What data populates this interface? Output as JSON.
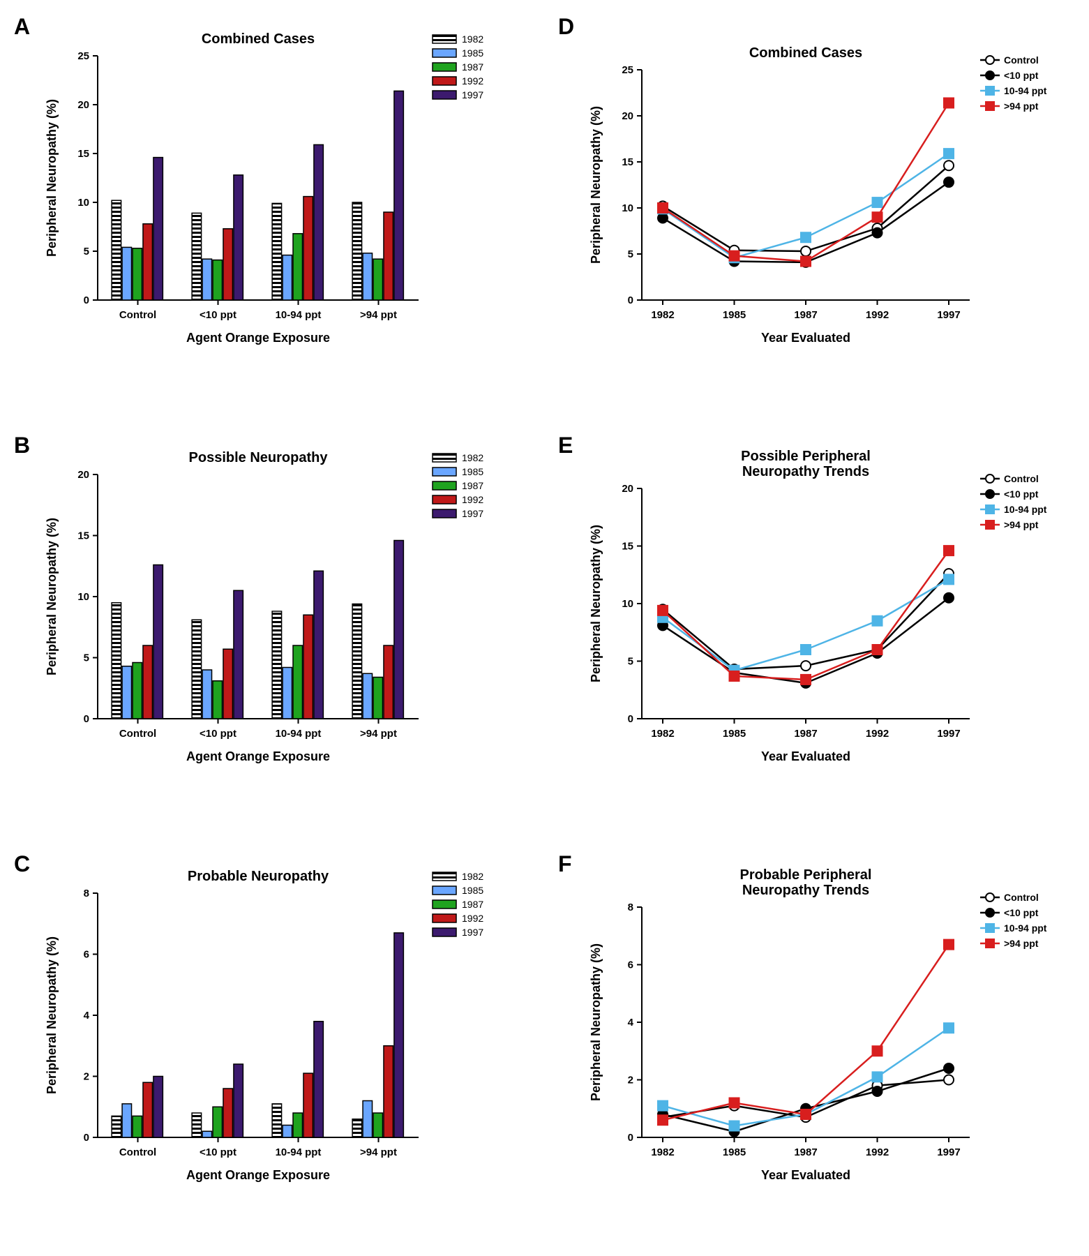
{
  "global": {
    "axis_color": "#000000",
    "tick_color": "#000000",
    "label_color": "#000000",
    "font_family": "Arial, Helvetica, sans-serif"
  },
  "bar_palette": {
    "y1982": {
      "fill": "#ffffff",
      "stroke": "#000000",
      "hatch": true
    },
    "y1985": {
      "fill": "#6aa6ff",
      "stroke": "#000000",
      "hatch": false
    },
    "y1987": {
      "fill": "#1fa31f",
      "stroke": "#000000",
      "hatch": false
    },
    "y1992": {
      "fill": "#c01919",
      "stroke": "#000000",
      "hatch": false
    },
    "y1997": {
      "fill": "#3c1a6e",
      "stroke": "#000000",
      "hatch": false
    }
  },
  "bar_legend_order": [
    "y1982",
    "y1985",
    "y1987",
    "y1992",
    "y1997"
  ],
  "bar_legend_labels": {
    "y1982": "1982",
    "y1985": "1985",
    "y1987": "1987",
    "y1992": "1992",
    "y1997": "1997"
  },
  "line_palette": {
    "Control": {
      "stroke": "#000000",
      "marker_fill": "#ffffff",
      "marker_shape": "circle"
    },
    "<10 ppt": {
      "stroke": "#000000",
      "marker_fill": "#000000",
      "marker_shape": "circle"
    },
    "10-94 ppt": {
      "stroke": "#4eb4e6",
      "marker_fill": "#4eb4e6",
      "marker_shape": "square"
    },
    ">94 ppt": {
      "stroke": "#d81e1e",
      "marker_fill": "#d81e1e",
      "marker_shape": "square"
    }
  },
  "line_legend_order": [
    "Control",
    "<10 ppt",
    "10-94 ppt",
    ">94 ppt"
  ],
  "panels": {
    "A": {
      "letter": "A",
      "kind": "bar",
      "title": "Combined  Cases",
      "xlabel": "Agent  Orange  Exposure",
      "ylabel": "Peripheral Neuropathy (%)",
      "categories": [
        "Control",
        "<10 ppt",
        "10-94 ppt",
        ">94 ppt"
      ],
      "series": [
        "y1982",
        "y1985",
        "y1987",
        "y1992",
        "y1997"
      ],
      "ylim": [
        0,
        25
      ],
      "ytick_step": 5,
      "title_fontsize": 20,
      "label_fontsize": 18,
      "tick_fontsize": 15,
      "bar_group_gap": 0.35,
      "data": {
        "Control": {
          "y1982": 10.2,
          "y1985": 5.4,
          "y1987": 5.3,
          "y1992": 7.8,
          "y1997": 14.6
        },
        "<10 ppt": {
          "y1982": 8.9,
          "y1985": 4.2,
          "y1987": 4.1,
          "y1992": 7.3,
          "y1997": 12.8
        },
        "10-94 ppt": {
          "y1982": 9.9,
          "y1985": 4.6,
          "y1987": 6.8,
          "y1992": 10.6,
          "y1997": 15.9
        },
        ">94 ppt": {
          "y1982": 10.0,
          "y1985": 4.8,
          "y1987": 4.2,
          "y1992": 9.0,
          "y1997": 21.4
        }
      }
    },
    "B": {
      "letter": "B",
      "kind": "bar",
      "title": "Possible  Neuropathy",
      "xlabel": "Agent  Orange  Exposure",
      "ylabel": "Peripheral Neuropathy  (%)",
      "categories": [
        "Control",
        "<10 ppt",
        "10-94 ppt",
        ">94 ppt"
      ],
      "series": [
        "y1982",
        "y1985",
        "y1987",
        "y1992",
        "y1997"
      ],
      "ylim": [
        0,
        20
      ],
      "ytick_step": 5,
      "title_fontsize": 20,
      "label_fontsize": 18,
      "tick_fontsize": 15,
      "bar_group_gap": 0.35,
      "data": {
        "Control": {
          "y1982": 9.5,
          "y1985": 4.3,
          "y1987": 4.6,
          "y1992": 6.0,
          "y1997": 12.6
        },
        "<10 ppt": {
          "y1982": 8.1,
          "y1985": 4.0,
          "y1987": 3.1,
          "y1992": 5.7,
          "y1997": 10.5
        },
        "10-94 ppt": {
          "y1982": 8.8,
          "y1985": 4.2,
          "y1987": 6.0,
          "y1992": 8.5,
          "y1997": 12.1
        },
        ">94 ppt": {
          "y1982": 9.4,
          "y1985": 3.7,
          "y1987": 3.4,
          "y1992": 6.0,
          "y1997": 14.6
        }
      }
    },
    "C": {
      "letter": "C",
      "kind": "bar",
      "title": "Probable  Neuropathy",
      "xlabel": "Agent Orange Exposure",
      "ylabel": "Peripheral Neuropathy (%)",
      "categories": [
        "Control",
        "<10 ppt",
        "10-94 ppt",
        ">94 ppt"
      ],
      "series": [
        "y1982",
        "y1985",
        "y1987",
        "y1992",
        "y1997"
      ],
      "ylim": [
        0,
        8
      ],
      "ytick_step": 2,
      "title_fontsize": 20,
      "label_fontsize": 18,
      "tick_fontsize": 15,
      "bar_group_gap": 0.35,
      "data": {
        "Control": {
          "y1982": 0.7,
          "y1985": 1.1,
          "y1987": 0.7,
          "y1992": 1.8,
          "y1997": 2.0
        },
        "<10 ppt": {
          "y1982": 0.8,
          "y1985": 0.2,
          "y1987": 1.0,
          "y1992": 1.6,
          "y1997": 2.4
        },
        "10-94 ppt": {
          "y1982": 1.1,
          "y1985": 0.4,
          "y1987": 0.8,
          "y1992": 2.1,
          "y1997": 3.8
        },
        ">94 ppt": {
          "y1982": 0.6,
          "y1985": 1.2,
          "y1987": 0.8,
          "y1992": 3.0,
          "y1997": 6.7
        }
      }
    },
    "D": {
      "letter": "D",
      "kind": "line",
      "title": "Combined Cases",
      "xlabel": "Year  Evaluated",
      "ylabel": "Peripheral Neuropathy (%)",
      "xcats": [
        "1982",
        "1985",
        "1987",
        "1992",
        "1997"
      ],
      "ylim": [
        0,
        25
      ],
      "ytick_step": 5,
      "title_fontsize": 20,
      "label_fontsize": 18,
      "tick_fontsize": 15,
      "line_width": 2.5,
      "marker_size": 7,
      "data": {
        "Control": [
          10.2,
          5.4,
          5.3,
          7.8,
          14.6
        ],
        "<10 ppt": [
          8.9,
          4.2,
          4.1,
          7.3,
          12.8
        ],
        "10-94 ppt": [
          9.9,
          4.6,
          6.8,
          10.6,
          15.9
        ],
        ">94 ppt": [
          10.0,
          4.8,
          4.2,
          9.0,
          21.4
        ]
      }
    },
    "E": {
      "letter": "E",
      "kind": "line",
      "title": "Possible Peripheral\nNeuropathy Trends",
      "xlabel": "Year  Evaluated",
      "ylabel": "Peripheral Neuropathy (%)",
      "xcats": [
        "1982",
        "1985",
        "1987",
        "1992",
        "1997"
      ],
      "ylim": [
        0,
        20
      ],
      "ytick_step": 5,
      "title_fontsize": 20,
      "label_fontsize": 18,
      "tick_fontsize": 15,
      "line_width": 2.5,
      "marker_size": 7,
      "data": {
        "Control": [
          9.5,
          4.3,
          4.6,
          6.0,
          12.6
        ],
        "<10 ppt": [
          8.1,
          4.0,
          3.1,
          5.7,
          10.5
        ],
        "10-94 ppt": [
          8.8,
          4.2,
          6.0,
          8.5,
          12.1
        ],
        ">94 ppt": [
          9.4,
          3.7,
          3.4,
          6.0,
          14.6
        ]
      }
    },
    "F": {
      "letter": "F",
      "kind": "line",
      "title": "Probable  Peripheral\nNeuropathy  Trends",
      "xlabel": "Year  Evaluated",
      "ylabel": "Peripheral Neuropathy (%)",
      "xcats": [
        "1982",
        "1985",
        "1987",
        "1992",
        "1997"
      ],
      "ylim": [
        0,
        8
      ],
      "ytick_step": 2,
      "title_fontsize": 20,
      "label_fontsize": 18,
      "tick_fontsize": 15,
      "line_width": 2.5,
      "marker_size": 7,
      "data": {
        "Control": [
          0.7,
          1.1,
          0.7,
          1.8,
          2.0
        ],
        "<10 ppt": [
          0.8,
          0.2,
          1.0,
          1.6,
          2.4
        ],
        "10-94 ppt": [
          1.1,
          0.4,
          0.8,
          2.1,
          3.8
        ],
        ">94 ppt": [
          0.6,
          1.2,
          0.8,
          3.0,
          6.7
        ]
      }
    }
  },
  "panel_order": [
    "A",
    "D",
    "B",
    "E",
    "C",
    "F"
  ]
}
